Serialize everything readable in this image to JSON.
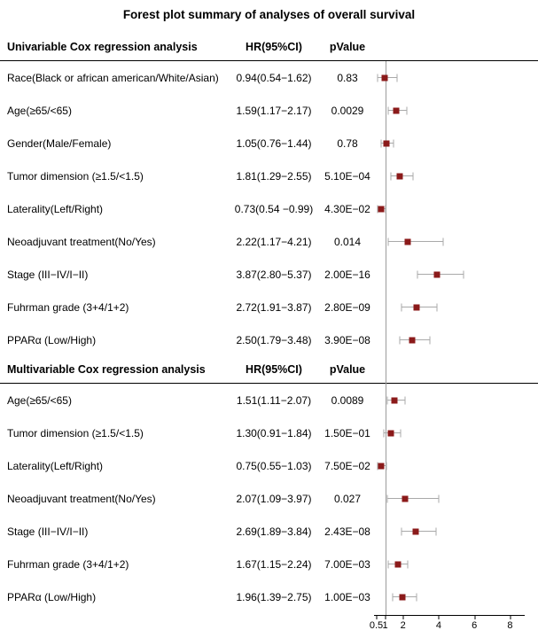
{
  "colors": {
    "marker": "#8b1a1a",
    "ci": "#a9a9a9",
    "reference_line": "#9b9b9b",
    "rule": "#000000"
  },
  "chart_data": {
    "type": "scatter",
    "subtype": "forest-plot",
    "title": "Forest plot summary of analyses of overall survival",
    "xlabel": "",
    "xlim": [
      0.35,
      8.8
    ],
    "x_ticks": [
      0.5,
      1,
      2,
      4,
      6,
      8
    ],
    "reference_line": 1,
    "grid": false,
    "sections": [
      {
        "header": "Univariable Cox regression analysis",
        "col_hr": "HR(95%CI)",
        "col_p": "pValue",
        "rows": [
          {
            "label": "Race(Black or african american/White/Asian)",
            "hr_ci": "0.94(0.54−1.62)",
            "pvalue": "0.83",
            "hr": 0.94,
            "ci_low": 0.54,
            "ci_high": 1.62
          },
          {
            "label": "Age(≥65/<65)",
            "hr_ci": "1.59(1.17−2.17)",
            "pvalue": "0.0029",
            "hr": 1.59,
            "ci_low": 1.17,
            "ci_high": 2.17
          },
          {
            "label": "Gender(Male/Female)",
            "hr_ci": "1.05(0.76−1.44)",
            "pvalue": "0.78",
            "hr": 1.05,
            "ci_low": 0.76,
            "ci_high": 1.44
          },
          {
            "label": "Tumor dimension (≥1.5/<1.5)",
            "hr_ci": "1.81(1.29−2.55)",
            "pvalue": "5.10E−04",
            "hr": 1.81,
            "ci_low": 1.29,
            "ci_high": 2.55
          },
          {
            "label": "Laterality(Left/Right)",
            "hr_ci": "0.73(0.54 −0.99)",
            "pvalue": "4.30E−02",
            "hr": 0.73,
            "ci_low": 0.54,
            "ci_high": 0.99
          },
          {
            "label": "Neoadjuvant treatment(No/Yes)",
            "hr_ci": "2.22(1.17−4.21)",
            "pvalue": "0.014",
            "hr": 2.22,
            "ci_low": 1.17,
            "ci_high": 4.21
          },
          {
            "label": "Stage (III−IV/I−II)",
            "hr_ci": "3.87(2.80−5.37)",
            "pvalue": "2.00E−16",
            "hr": 3.87,
            "ci_low": 2.8,
            "ci_high": 5.37
          },
          {
            "label": "Fuhrman grade (3+4/1+2)",
            "hr_ci": "2.72(1.91−3.87)",
            "pvalue": "2.80E−09",
            "hr": 2.72,
            "ci_low": 1.91,
            "ci_high": 3.87
          },
          {
            "label": "PPARα (Low/High)",
            "hr_ci": "2.50(1.79−3.48)",
            "pvalue": "3.90E−08",
            "hr": 2.5,
            "ci_low": 1.79,
            "ci_high": 3.48
          }
        ]
      },
      {
        "header": "Multivariable Cox regression analysis",
        "col_hr": "HR(95%CI)",
        "col_p": "pValue",
        "rows": [
          {
            "label": "Age(≥65/<65)",
            "hr_ci": "1.51(1.11−2.07)",
            "pvalue": "0.0089",
            "hr": 1.51,
            "ci_low": 1.11,
            "ci_high": 2.07
          },
          {
            "label": "Tumor dimension (≥1.5/<1.5)",
            "hr_ci": "1.30(0.91−1.84)",
            "pvalue": "1.50E−01",
            "hr": 1.3,
            "ci_low": 0.91,
            "ci_high": 1.84
          },
          {
            "label": "Laterality(Left/Right)",
            "hr_ci": "0.75(0.55−1.03)",
            "pvalue": "7.50E−02",
            "hr": 0.75,
            "ci_low": 0.55,
            "ci_high": 1.03
          },
          {
            "label": "Neoadjuvant treatment(No/Yes)",
            "hr_ci": "2.07(1.09−3.97)",
            "pvalue": "0.027",
            "hr": 2.07,
            "ci_low": 1.09,
            "ci_high": 3.97
          },
          {
            "label": "Stage (III−IV/I−II)",
            "hr_ci": "2.69(1.89−3.84)",
            "pvalue": "2.43E−08",
            "hr": 2.69,
            "ci_low": 1.89,
            "ci_high": 3.84
          },
          {
            "label": "Fuhrman grade (3+4/1+2)",
            "hr_ci": "1.67(1.15−2.24)",
            "pvalue": "7.00E−03",
            "hr": 1.67,
            "ci_low": 1.15,
            "ci_high": 2.24
          },
          {
            "label": "PPARα (Low/High)",
            "hr_ci": "1.96(1.39−2.75)",
            "pvalue": "1.00E−03",
            "hr": 1.96,
            "ci_low": 1.39,
            "ci_high": 2.75
          }
        ]
      }
    ]
  }
}
